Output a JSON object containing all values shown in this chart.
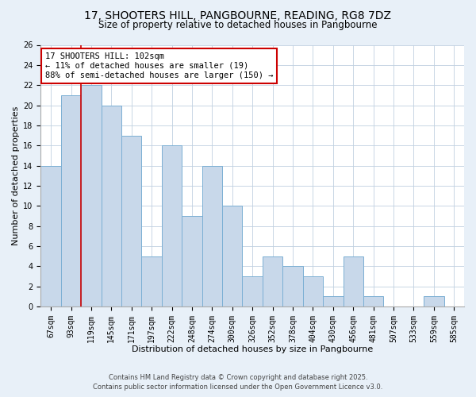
{
  "title": "17, SHOOTERS HILL, PANGBOURNE, READING, RG8 7DZ",
  "subtitle": "Size of property relative to detached houses in Pangbourne",
  "xlabel": "Distribution of detached houses by size in Pangbourne",
  "ylabel": "Number of detached properties",
  "bins": [
    "67sqm",
    "93sqm",
    "119sqm",
    "145sqm",
    "171sqm",
    "197sqm",
    "222sqm",
    "248sqm",
    "274sqm",
    "300sqm",
    "326sqm",
    "352sqm",
    "378sqm",
    "404sqm",
    "430sqm",
    "456sqm",
    "481sqm",
    "507sqm",
    "533sqm",
    "559sqm",
    "585sqm"
  ],
  "values": [
    14,
    21,
    22,
    20,
    17,
    5,
    16,
    9,
    14,
    10,
    3,
    5,
    4,
    3,
    1,
    5,
    1,
    0,
    0,
    1,
    0
  ],
  "bar_color": "#c8d8ea",
  "bar_edge_color": "#7bafd4",
  "property_line_color": "#cc0000",
  "property_line_bin": 1,
  "annotation_text": "17 SHOOTERS HILL: 102sqm\n← 11% of detached houses are smaller (19)\n88% of semi-detached houses are larger (150) →",
  "annotation_box_facecolor": "white",
  "annotation_box_edgecolor": "#cc0000",
  "ylim": [
    0,
    26
  ],
  "yticks": [
    0,
    2,
    4,
    6,
    8,
    10,
    12,
    14,
    16,
    18,
    20,
    22,
    24,
    26
  ],
  "footer_line1": "Contains HM Land Registry data © Crown copyright and database right 2025.",
  "footer_line2": "Contains public sector information licensed under the Open Government Licence v3.0.",
  "bg_color": "#e8f0f8",
  "plot_bg_color": "#ffffff",
  "grid_color": "#c0d0e0",
  "title_fontsize": 10,
  "subtitle_fontsize": 8.5,
  "axis_label_fontsize": 8,
  "tick_fontsize": 7,
  "annotation_fontsize": 7.5,
  "footer_fontsize": 6
}
